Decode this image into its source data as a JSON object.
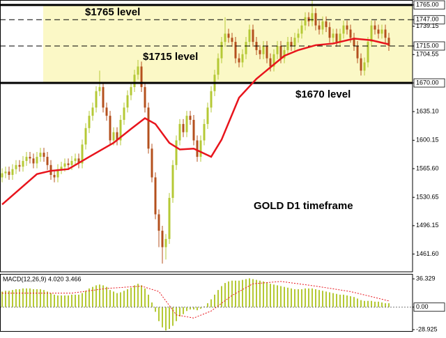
{
  "chart_data": [
    {
      "type": "candlestick",
      "bull_color": "#b5c935",
      "bear_color": "#b4501e",
      "open": [
        1555,
        1560,
        1562,
        1558,
        1565,
        1570,
        1568,
        1575,
        1580,
        1578,
        1572,
        1580,
        1585,
        1580,
        1570,
        1558,
        1555,
        1565,
        1568,
        1572,
        1570,
        1575,
        1578,
        1572,
        1595,
        1615,
        1630,
        1640,
        1660,
        1665,
        1640,
        1630,
        1600,
        1610,
        1600,
        1625,
        1640,
        1655,
        1665,
        1680,
        1690,
        1665,
        1640,
        1590,
        1555,
        1510,
        1490,
        1470,
        1480,
        1530,
        1570,
        1600,
        1620,
        1610,
        1630,
        1625,
        1600,
        1580,
        1600,
        1620,
        1640,
        1660,
        1680,
        1700,
        1720,
        1730,
        1725,
        1720,
        1700,
        1695,
        1705,
        1720,
        1735,
        1720,
        1710,
        1705,
        1715,
        1700,
        1690,
        1705,
        1715,
        1700,
        1710,
        1720,
        1715,
        1725,
        1730,
        1740,
        1750,
        1745,
        1755,
        1740,
        1735,
        1745,
        1738,
        1725,
        1730,
        1720,
        1730,
        1740,
        1735,
        1725,
        1715,
        1700,
        1685,
        1695,
        1720,
        1740,
        1735,
        1730,
        1735,
        1725
      ],
      "high": [
        1566,
        1568,
        1568,
        1571,
        1576,
        1576,
        1581,
        1586,
        1586,
        1584,
        1586,
        1591,
        1591,
        1586,
        1576,
        1564,
        1571,
        1574,
        1578,
        1578,
        1581,
        1584,
        1584,
        1601,
        1621,
        1636,
        1646,
        1666,
        1685,
        1671,
        1646,
        1636,
        1616,
        1616,
        1631,
        1646,
        1661,
        1671,
        1686,
        1698,
        1696,
        1671,
        1646,
        1596,
        1561,
        1516,
        1496,
        1486,
        1536,
        1576,
        1606,
        1626,
        1626,
        1636,
        1636,
        1631,
        1606,
        1606,
        1626,
        1646,
        1666,
        1686,
        1706,
        1726,
        1750,
        1736,
        1731,
        1726,
        1706,
        1711,
        1726,
        1741,
        1741,
        1726,
        1716,
        1721,
        1721,
        1706,
        1711,
        1721,
        1721,
        1716,
        1726,
        1726,
        1731,
        1736,
        1746,
        1756,
        1756,
        1770,
        1761,
        1746,
        1751,
        1751,
        1744,
        1736,
        1736,
        1736,
        1746,
        1746,
        1741,
        1731,
        1721,
        1706,
        1701,
        1726,
        1746,
        1746,
        1741,
        1741,
        1741,
        1731
      ],
      "low": [
        1549,
        1554,
        1552,
        1552,
        1559,
        1562,
        1562,
        1569,
        1572,
        1566,
        1566,
        1574,
        1574,
        1564,
        1552,
        1549,
        1549,
        1559,
        1562,
        1564,
        1564,
        1569,
        1566,
        1566,
        1589,
        1609,
        1624,
        1634,
        1654,
        1634,
        1624,
        1594,
        1594,
        1594,
        1594,
        1619,
        1634,
        1649,
        1659,
        1674,
        1659,
        1634,
        1584,
        1549,
        1504,
        1470,
        1450,
        1455,
        1474,
        1524,
        1564,
        1594,
        1604,
        1604,
        1619,
        1594,
        1574,
        1574,
        1594,
        1614,
        1634,
        1654,
        1674,
        1694,
        1714,
        1719,
        1714,
        1694,
        1689,
        1689,
        1699,
        1714,
        1714,
        1704,
        1699,
        1699,
        1694,
        1684,
        1684,
        1699,
        1694,
        1694,
        1704,
        1709,
        1709,
        1719,
        1724,
        1734,
        1739,
        1739,
        1734,
        1729,
        1729,
        1732,
        1719,
        1719,
        1714,
        1714,
        1724,
        1729,
        1719,
        1709,
        1694,
        1679,
        1679,
        1689,
        1714,
        1729,
        1724,
        1724,
        1719,
        1709
      ],
      "close": [
        1560,
        1562,
        1558,
        1565,
        1570,
        1568,
        1575,
        1580,
        1578,
        1572,
        1580,
        1585,
        1580,
        1570,
        1558,
        1555,
        1565,
        1568,
        1572,
        1570,
        1575,
        1578,
        1572,
        1595,
        1615,
        1630,
        1640,
        1660,
        1665,
        1640,
        1630,
        1600,
        1610,
        1600,
        1625,
        1640,
        1655,
        1665,
        1680,
        1690,
        1665,
        1640,
        1590,
        1555,
        1510,
        1490,
        1470,
        1480,
        1530,
        1570,
        1600,
        1620,
        1610,
        1630,
        1625,
        1600,
        1580,
        1600,
        1620,
        1640,
        1660,
        1680,
        1700,
        1720,
        1730,
        1725,
        1720,
        1700,
        1695,
        1705,
        1720,
        1735,
        1720,
        1710,
        1705,
        1715,
        1700,
        1690,
        1705,
        1715,
        1700,
        1710,
        1720,
        1715,
        1725,
        1730,
        1740,
        1750,
        1745,
        1755,
        1740,
        1735,
        1745,
        1738,
        1725,
        1730,
        1720,
        1730,
        1740,
        1735,
        1725,
        1715,
        1700,
        1685,
        1695,
        1720,
        1740,
        1735,
        1730,
        1735,
        1725,
        1715
      ],
      "ma": {
        "color": "#e8141c",
        "x": [
          0,
          10,
          14,
          19,
          25,
          32,
          37,
          41,
          44,
          48,
          51,
          55,
          60,
          63,
          68,
          73,
          77,
          81,
          85,
          90,
          95,
          101,
          106,
          111
        ],
        "values": [
          1522,
          1559,
          1563,
          1565,
          1580,
          1597,
          1614,
          1627,
          1620,
          1597,
          1589,
          1590,
          1580,
          1601,
          1652,
          1675,
          1689,
          1703,
          1710,
          1716,
          1718,
          1724,
          1722,
          1717
        ]
      },
      "xlim": [
        -0.6,
        117.8
      ],
      "ylim": [
        1440,
        1771
      ],
      "yticks": [
        {
          "value": 1765,
          "label": "1765.00"
        },
        {
          "value": 1747,
          "label": "1747.00"
        },
        1739.15,
        {
          "value": 1715,
          "label": "1715.00"
        },
        1704.55,
        {
          "value": 1670,
          "label": "1670.00"
        },
        {
          "value": 1635.1,
          "label": "1635.10"
        },
        1600.15,
        {
          "value": 1565.6,
          "label": "1565.60"
        },
        1530.65,
        1496.15,
        {
          "value": 1461.6,
          "label": "1461.60"
        }
      ],
      "zone": {
        "from": 1670,
        "to": 1765,
        "color": "#fbf8c6"
      },
      "levels": [
        {
          "value": 1765,
          "style": "solid"
        },
        {
          "value": 1747,
          "style": "dashed"
        },
        {
          "value": 1715,
          "style": "dashed"
        },
        {
          "value": 1670,
          "style": "solid"
        }
      ],
      "annotations": [
        "$1765 level",
        "$1715 level",
        "$1670 level",
        "GOLD D1 timeframe"
      ]
    },
    {
      "type": "macd",
      "title": "MACD(12,26,9) 4.020 3.466",
      "color": "#b5c935",
      "signal_color": "#e8141c",
      "histogram": [
        20,
        21,
        21,
        22,
        23,
        23,
        24,
        24,
        24,
        23,
        23,
        23,
        22,
        20,
        18,
        16,
        15,
        15,
        15,
        15,
        16,
        16,
        16,
        18,
        21,
        24,
        26,
        28,
        29,
        28,
        26,
        22,
        20,
        18,
        19,
        21,
        23,
        25,
        28,
        30,
        28,
        24,
        16,
        6,
        -6,
        -18,
        -26,
        -30,
        -28,
        -24,
        -18,
        -12,
        -9,
        -5,
        -3,
        -3,
        -4,
        -2,
        1,
        5,
        10,
        16,
        22,
        27,
        31,
        33,
        34,
        34,
        34,
        35,
        36,
        37,
        36,
        35,
        34,
        33,
        32,
        30,
        29,
        28,
        27,
        26,
        25,
        24,
        23,
        23,
        23,
        24,
        24,
        24,
        23,
        22,
        21,
        20,
        19,
        18,
        17,
        16,
        16,
        15,
        14,
        13,
        11,
        9,
        8,
        8,
        8,
        7,
        7,
        6,
        5,
        5
      ],
      "signal": {
        "x": [
          0,
          20,
          30,
          40,
          45,
          50,
          55,
          60,
          66,
          72,
          80,
          90,
          100,
          111
        ],
        "values": [
          18,
          18,
          24,
          27,
          20,
          -10,
          -14,
          -5,
          15,
          30,
          33,
          27,
          20,
          8
        ]
      },
      "xlim": [
        -0.6,
        117.8
      ],
      "ylim": [
        -31.6,
        42.7
      ],
      "yticks": [
        36.329,
        {
          "value": 0,
          "label": "0.00"
        },
        -28.925
      ]
    }
  ]
}
